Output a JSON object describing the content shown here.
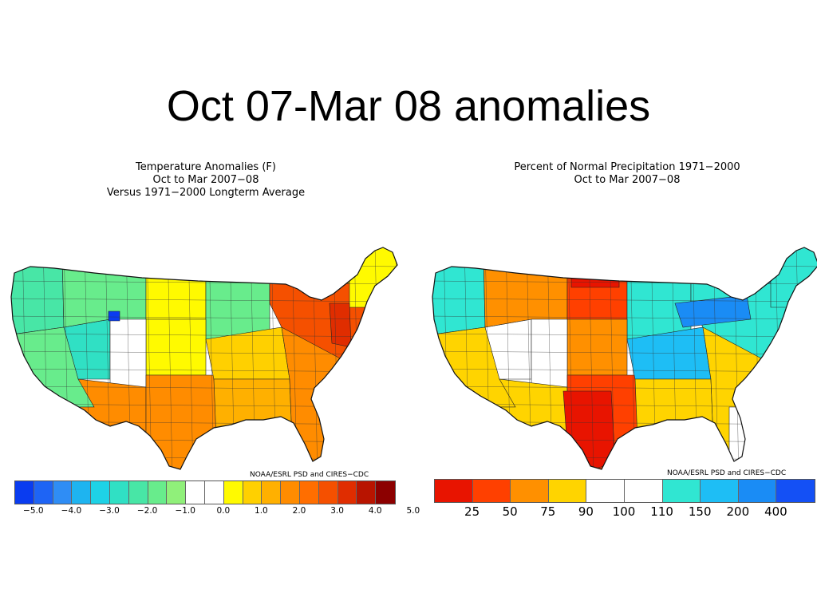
{
  "slide": {
    "title": "Oct 07-Mar 08 anomalies"
  },
  "temperature_map": {
    "title_lines": [
      "Temperature Anomalies (F)",
      "Oct to Mar 2007−08",
      "Versus 1971−2000 Longterm Average"
    ],
    "credit": "NOAA/ESRL PSD and CIRES−CDC",
    "legend": {
      "colors": [
        "#0a3cf0",
        "#1e64f5",
        "#2f8df5",
        "#1eb4f0",
        "#1ed2e6",
        "#30e0c4",
        "#48e6a6",
        "#68ec8c",
        "#90f07a",
        "#ffffff",
        "#ffffff",
        "#fffa00",
        "#ffd000",
        "#ffb000",
        "#ff8c00",
        "#ff6e00",
        "#f55000",
        "#e02d00",
        "#b81400",
        "#8c0000"
      ],
      "tick_labels": [
        "−5.0",
        "−4.0",
        "−3.0",
        "−2.0",
        "−1.0",
        "0.0",
        "1.0",
        "2.0",
        "3.0",
        "4.0",
        "5.0"
      ]
    },
    "region_colors": {
      "pacific_nw": "#48e6a6",
      "california": "#68ec8c",
      "great_basin": "#30e0c4",
      "utah_cold": "#0a3cf0",
      "northern_rockies": "#68ec8c",
      "northern_plains": "#fffa00",
      "upper_midwest": "#68ec8c",
      "central_plains": "#fffa00",
      "ohio_valley": "#ffd000",
      "southwest": "#ff8c00",
      "texas": "#ff8c00",
      "gulf_coast": "#ffb000",
      "southeast": "#ff8c00",
      "mid_atlantic": "#f55000",
      "northeast": "#ffd000",
      "new_england": "#fffa00",
      "southern_rockies": "#ffffff"
    }
  },
  "precip_map": {
    "title_lines": [
      "Percent of Normal Precipitation 1971−2000",
      "Oct to Mar 2007−08"
    ],
    "credit": "NOAA/ESRL PSD and CIRES−CDC",
    "legend": {
      "colors": [
        "#e81400",
        "#ff4000",
        "#ff9000",
        "#ffd400",
        "#ffffff",
        "#ffffff",
        "#30e6d2",
        "#1ebef5",
        "#1a8cf5",
        "#1450f5"
      ],
      "tick_labels": [
        "25",
        "50",
        "75",
        "90",
        "100",
        "110",
        "150",
        "200",
        "400"
      ]
    },
    "region_colors": {
      "pacific_nw": "#30e6d2",
      "california": "#ffd400",
      "great_basin": "#ffffff",
      "northern_rockies": "#ff9000",
      "northern_plains": "#ff4000",
      "upper_midwest": "#30e6d2",
      "central_plains": "#ff9000",
      "ohio_valley": "#1ebef5",
      "southwest": "#ffd400",
      "texas": "#ff4000",
      "gulf_coast": "#ffd400",
      "southeast": "#ffd400",
      "mid_atlantic": "#30e6d2",
      "northeast": "#1ebef5",
      "new_england": "#30e6d2",
      "southern_rockies": "#ffffff",
      "utah_cold": "#ffffff"
    }
  }
}
